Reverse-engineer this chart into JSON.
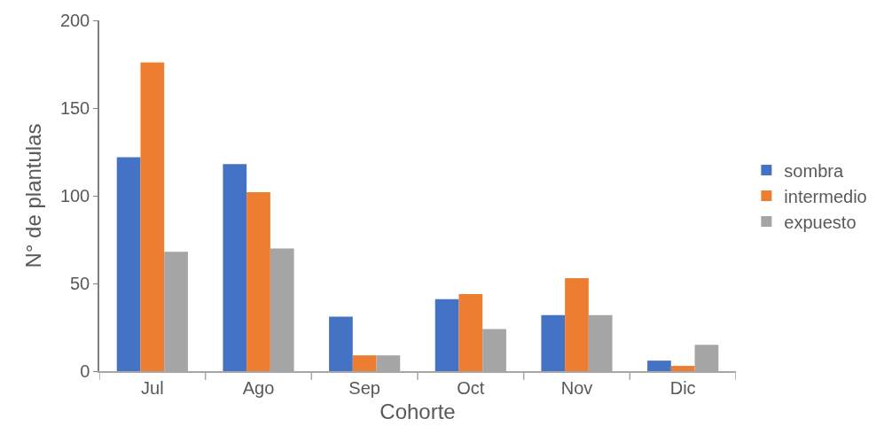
{
  "chart_data": {
    "type": "bar",
    "xlabel": "Cohorte",
    "ylabel": "N° de plantulas",
    "categories": [
      "Jul",
      "Ago",
      "Sep",
      "Oct",
      "Nov",
      "Dic"
    ],
    "series": [
      {
        "name": "sombra",
        "color": "#4472c4",
        "values": [
          122,
          118,
          31,
          41,
          32,
          6
        ]
      },
      {
        "name": "intermedio",
        "color": "#ed7d31",
        "values": [
          176,
          102,
          9,
          44,
          53,
          3
        ]
      },
      {
        "name": "expuesto",
        "color": "#a5a5a5",
        "values": [
          68,
          70,
          9,
          24,
          32,
          15
        ]
      }
    ],
    "ylim": [
      0,
      200
    ],
    "yticks": [
      0,
      50,
      100,
      150,
      200
    ],
    "legend": "right"
  }
}
